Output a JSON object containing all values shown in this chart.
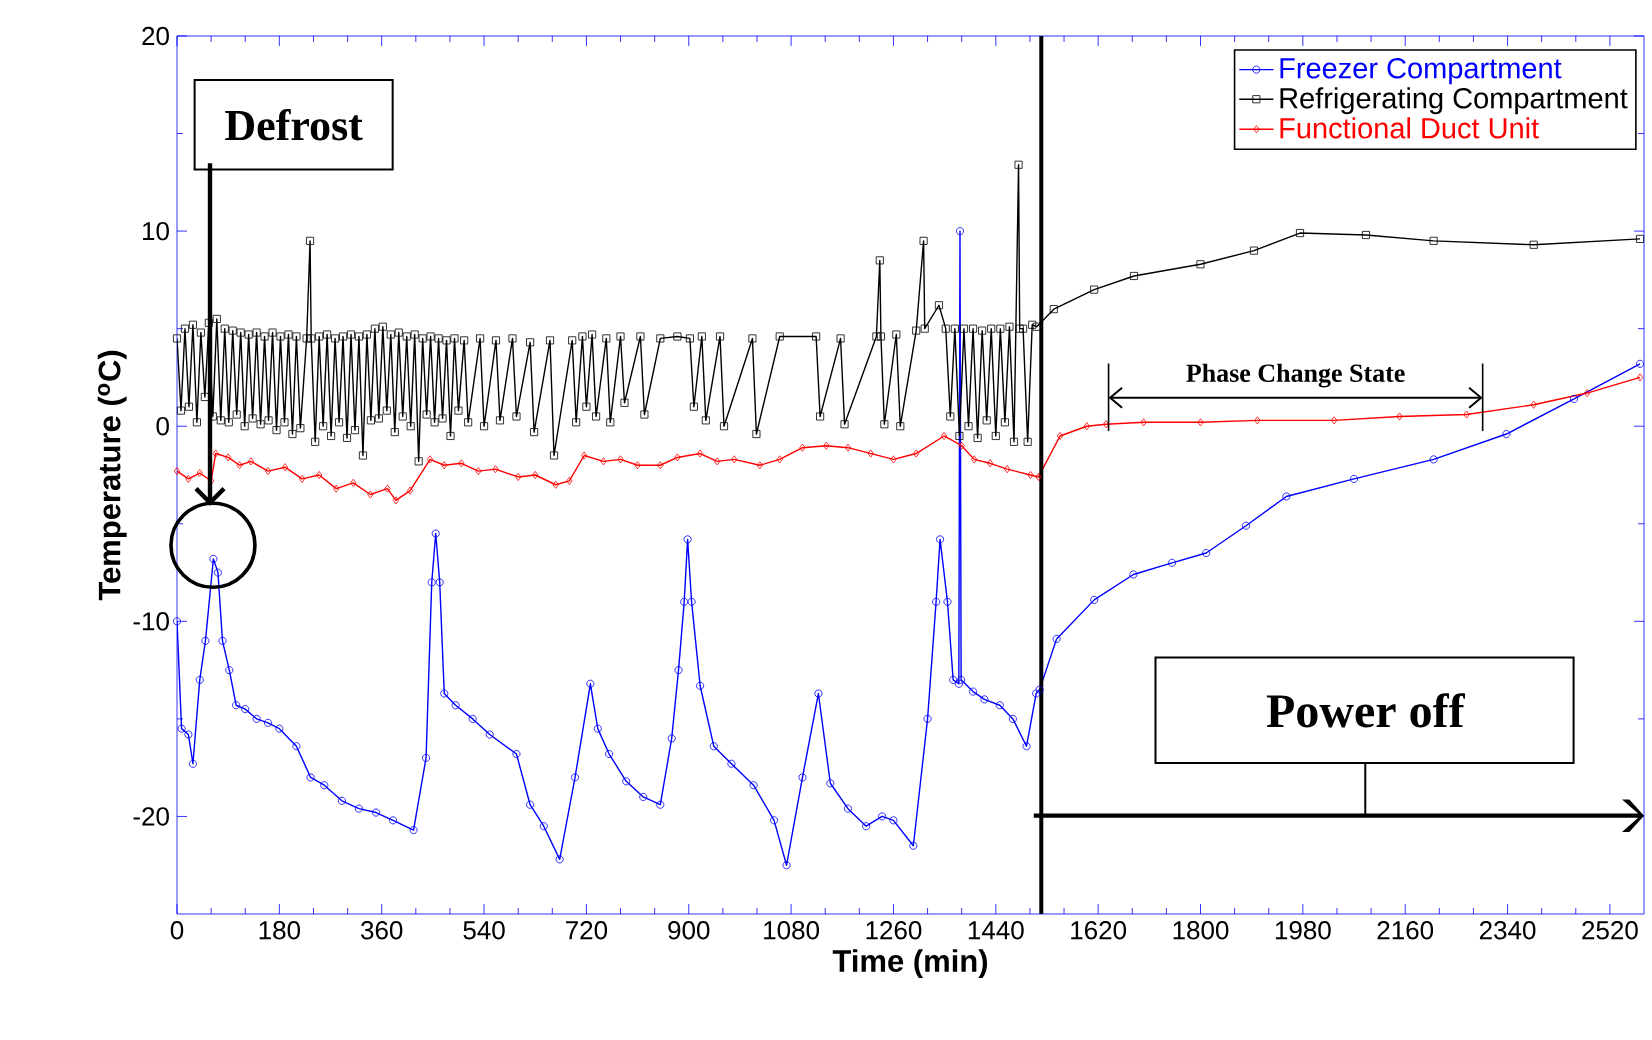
{
  "chart_data": {
    "type": "line",
    "xlabel": "Time (min)",
    "ylabel": "Temperature ($^{o}$C)",
    "xlim": [
      0,
      2580
    ],
    "ylim": [
      -25,
      20
    ],
    "xticks": [
      0,
      180,
      360,
      540,
      720,
      900,
      1080,
      1260,
      1440,
      1620,
      1800,
      1980,
      2160,
      2340,
      2520
    ],
    "yticks": [
      -20,
      -10,
      0,
      10,
      20
    ],
    "legend": "top right",
    "line_style": "solid",
    "series": [
      {
        "name": "Freezer Compartment",
        "color": "#0000ff",
        "marker": "circle",
        "x": [
          0,
          8,
          20,
          28,
          40,
          50,
          64,
          72,
          80,
          92,
          104,
          120,
          140,
          160,
          180,
          210,
          235,
          259,
          290,
          320,
          350,
          380,
          416,
          438,
          448,
          455,
          462,
          470,
          490,
          520,
          550,
          597,
          621,
          645,
          673,
          700,
          727,
          740,
          760,
          790,
          820,
          850,
          870,
          882,
          892,
          898,
          905,
          920,
          944,
          975,
          1014,
          1050,
          1072,
          1100,
          1128,
          1149,
          1180,
          1212,
          1240,
          1260,
          1295,
          1320,
          1335,
          1342,
          1355,
          1365,
          1375,
          1377,
          1379,
          1400,
          1420,
          1447,
          1470,
          1494,
          1511,
          1517,
          1547,
          1613,
          1682,
          1750,
          1810,
          1880,
          1951,
          2070,
          2210,
          2338,
          2457,
          2573
        ],
        "values": [
          -10,
          -15.5,
          -15.8,
          -17.3,
          -13,
          -11,
          -6.8,
          -7.5,
          -11,
          -12.5,
          -14.3,
          -14.5,
          -15,
          -15.2,
          -15.5,
          -16.4,
          -18,
          -18.4,
          -19.2,
          -19.6,
          -19.8,
          -20.2,
          -20.7,
          -17,
          -8,
          -5.5,
          -8,
          -13.7,
          -14.3,
          -15,
          -15.8,
          -16.8,
          -19.4,
          -20.5,
          -22.2,
          -18,
          -13.2,
          -15.5,
          -16.8,
          -18.2,
          -19,
          -19.4,
          -16,
          -12.5,
          -9,
          -5.8,
          -9,
          -13.3,
          -16.4,
          -17.3,
          -18.4,
          -20.2,
          -22.5,
          -18,
          -13.7,
          -18.3,
          -19.6,
          -20.5,
          -20,
          -20.2,
          -21.5,
          -15,
          -9,
          -5.8,
          -9,
          -13,
          -13.2,
          10,
          -13,
          -13.6,
          -14,
          -14.3,
          -15,
          -16.4,
          -13.7,
          -13.5,
          -10.9,
          -8.9,
          -7.6,
          -7,
          -6.5,
          -5.1,
          -3.6,
          -2.7,
          -1.7,
          -0.4,
          1.4,
          3.2
        ]
      },
      {
        "name": "Refrigerating Compartment",
        "color": "#000000",
        "marker": "square",
        "x": [
          0,
          7,
          14,
          21,
          28,
          35,
          42,
          49,
          56,
          63,
          70,
          77,
          84,
          91,
          98,
          105,
          112,
          119,
          126,
          133,
          140,
          147,
          154,
          161,
          168,
          175,
          182,
          189,
          196,
          203,
          210,
          217,
          228,
          234,
          236,
          243,
          250,
          257,
          264,
          271,
          278,
          285,
          292,
          299,
          306,
          313,
          320,
          327,
          334,
          341,
          348,
          355,
          362,
          369,
          376,
          383,
          390,
          397,
          404,
          411,
          418,
          425,
          432,
          439,
          446,
          453,
          460,
          467,
          474,
          481,
          488,
          495,
          505,
          512,
          533,
          540,
          561,
          568,
          590,
          597,
          621,
          628,
          656,
          663,
          695,
          702,
          713,
          720,
          730,
          737,
          755,
          762,
          780,
          787,
          815,
          822,
          850,
          880,
          902,
          909,
          923,
          930,
          955,
          962,
          1012,
          1019,
          1060,
          1124,
          1131,
          1167,
          1174,
          1230,
          1236,
          1238,
          1244,
          1265,
          1272,
          1300,
          1313,
          1315,
          1340,
          1352,
          1360,
          1368,
          1376,
          1384,
          1392,
          1400,
          1408,
          1416,
          1424,
          1432,
          1440,
          1448,
          1456,
          1464,
          1472,
          1480,
          1482,
          1488,
          1496,
          1504,
          1512,
          1542,
          1613,
          1683,
          1800,
          1894,
          1975,
          2091,
          2210,
          2386,
          2573
        ],
        "values": [
          4.5,
          0.8,
          5.0,
          1.0,
          5.2,
          0.2,
          4.8,
          1.5,
          5.3,
          0.5,
          5.5,
          0.3,
          5.0,
          0.2,
          4.9,
          0.6,
          4.8,
          0.0,
          4.7,
          0.4,
          4.8,
          0.1,
          4.6,
          0.3,
          4.8,
          -0.2,
          4.6,
          0.2,
          4.7,
          -0.4,
          4.6,
          -0.1,
          4.5,
          9.5,
          4.5,
          -0.8,
          4.6,
          0.0,
          4.7,
          -0.5,
          4.5,
          0.2,
          4.6,
          -0.6,
          4.7,
          -0.2,
          4.6,
          -1.5,
          4.7,
          0.3,
          5.0,
          0.4,
          5.1,
          0.8,
          4.7,
          -0.3,
          4.8,
          0.5,
          4.6,
          0.0,
          4.7,
          -1.8,
          4.5,
          0.6,
          4.6,
          0.2,
          4.5,
          0.4,
          4.4,
          -0.5,
          4.5,
          0.8,
          4.4,
          0.2,
          4.5,
          0.0,
          4.4,
          0.3,
          4.5,
          0.5,
          4.3,
          -0.3,
          4.4,
          -1.5,
          4.4,
          0.2,
          4.6,
          1.0,
          4.7,
          0.5,
          4.5,
          0.2,
          4.6,
          1.2,
          4.6,
          0.6,
          4.5,
          4.6,
          4.5,
          1.0,
          4.6,
          0.3,
          4.6,
          0.0,
          4.5,
          -0.4,
          4.6,
          4.6,
          0.5,
          4.5,
          0.1,
          4.6,
          8.5,
          4.6,
          0.1,
          4.7,
          0.0,
          4.9,
          9.5,
          5.0,
          6.2,
          5.0,
          0.5,
          5.0,
          -0.5,
          5.0,
          0.0,
          5.0,
          -0.6,
          4.9,
          0.3,
          5.0,
          -0.5,
          5.0,
          0.2,
          5.1,
          -0.8,
          13.4,
          5.0,
          5.0,
          -0.8,
          5.2,
          5.1,
          6.0,
          7.0,
          7.7,
          8.3,
          9.0,
          9.9,
          9.8,
          9.5,
          9.3,
          9.6
        ]
      },
      {
        "name": "Functional Duct Unit",
        "color": "#ff0000",
        "marker": "diamond",
        "x": [
          0,
          20,
          40,
          60,
          68,
          90,
          110,
          130,
          160,
          190,
          220,
          250,
          280,
          310,
          340,
          370,
          385,
          410,
          445,
          470,
          500,
          530,
          560,
          600,
          630,
          666,
          690,
          716,
          750,
          780,
          810,
          850,
          880,
          920,
          950,
          980,
          1025,
          1060,
          1100,
          1142,
          1180,
          1220,
          1260,
          1300,
          1349,
          1380,
          1402,
          1430,
          1460,
          1501,
          1515,
          1553,
          1600,
          1634,
          1700,
          1800,
          1900,
          2035,
          2150,
          2268,
          2386,
          2480,
          2573
        ],
        "values": [
          -2.3,
          -2.7,
          -2.4,
          -2.8,
          -1.4,
          -1.6,
          -2.0,
          -1.8,
          -2.3,
          -2.1,
          -2.7,
          -2.5,
          -3.2,
          -2.9,
          -3.5,
          -3.2,
          -3.8,
          -3.3,
          -1.7,
          -2.0,
          -1.9,
          -2.3,
          -2.2,
          -2.6,
          -2.5,
          -3.0,
          -2.8,
          -1.5,
          -1.8,
          -1.7,
          -2.0,
          -2.0,
          -1.6,
          -1.4,
          -1.8,
          -1.7,
          -2.0,
          -1.7,
          -1.1,
          -1.0,
          -1.1,
          -1.4,
          -1.7,
          -1.4,
          -0.5,
          -1.0,
          -1.7,
          -1.9,
          -2.2,
          -2.5,
          -2.6,
          -0.5,
          0.0,
          0.1,
          0.2,
          0.2,
          0.3,
          0.3,
          0.5,
          0.6,
          1.1,
          1.7,
          2.5
        ]
      }
    ],
    "ref_lines": [
      {
        "axis": "x",
        "value": 1520,
        "color": "#000000"
      }
    ],
    "annotations": [
      "Defrost",
      "Power off",
      "Phase Change State"
    ]
  }
}
